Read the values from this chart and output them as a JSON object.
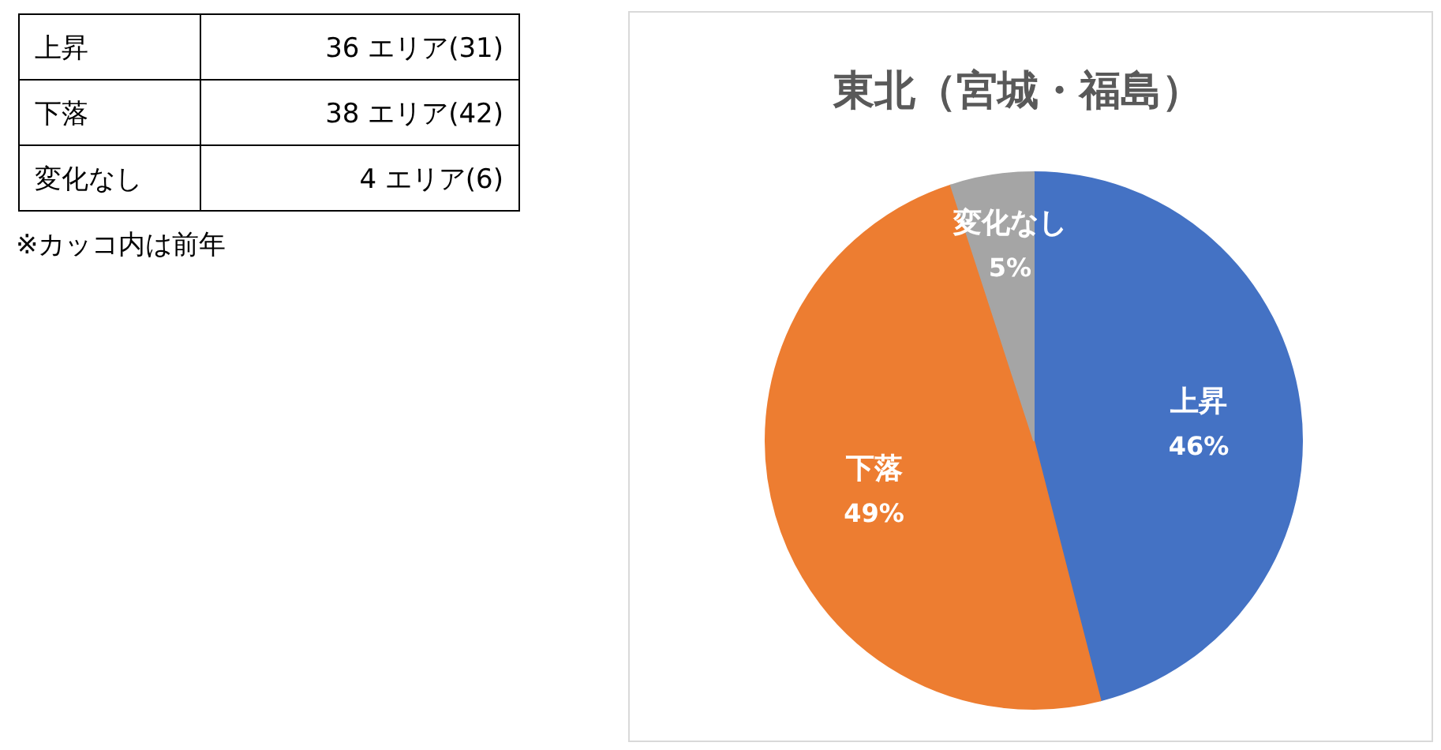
{
  "chart_data": [
    {
      "type": "other",
      "categories": [
        "上昇",
        "下落",
        "変化なし"
      ],
      "value_labels": [
        "36 エリア(31)",
        "38 エリア(42)",
        "4 エリア(6)"
      ],
      "annotations": [
        "※カッコ内は前年"
      ]
    },
    {
      "type": "pie",
      "title": "東北（宮城・福島）",
      "categories": [
        "上昇",
        "下落",
        "変化なし"
      ],
      "values": [
        46,
        49,
        5
      ],
      "colors": [
        "#4472c4",
        "#ed7d31",
        "#a5a5a5"
      ],
      "value_labels": [
        "46%",
        "49%",
        "5%"
      ]
    }
  ]
}
